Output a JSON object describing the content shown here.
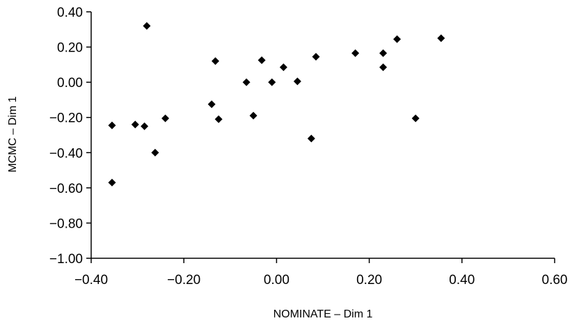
{
  "chart_data": {
    "type": "scatter",
    "xlabel": "NOMINATE – Dim 1",
    "ylabel": "MCMC – Dim 1",
    "xlim": [
      -0.4,
      0.6
    ],
    "ylim": [
      -1.0,
      0.4
    ],
    "x_ticks": [
      "−0.40",
      "−0.20",
      "0.00",
      "0.20",
      "0.40",
      "0.60"
    ],
    "y_ticks": [
      "0.40",
      "0.20",
      "0.00",
      "−0.20",
      "−0.40",
      "−0.60",
      "−0.80",
      "−1.00"
    ],
    "x_tick_values": [
      -0.4,
      -0.2,
      0.0,
      0.2,
      0.4,
      0.6
    ],
    "y_tick_values": [
      0.4,
      0.2,
      0.0,
      -0.2,
      -0.4,
      -0.6,
      -0.8,
      -1.0
    ],
    "grid": false,
    "marker": "diamond",
    "marker_color": "#000000",
    "points": [
      {
        "x": -0.355,
        "y": -0.57
      },
      {
        "x": -0.355,
        "y": -0.245
      },
      {
        "x": -0.305,
        "y": -0.24
      },
      {
        "x": -0.285,
        "y": -0.25
      },
      {
        "x": -0.28,
        "y": 0.32
      },
      {
        "x": -0.262,
        "y": -0.4
      },
      {
        "x": -0.24,
        "y": -0.205
      },
      {
        "x": -0.14,
        "y": -0.125
      },
      {
        "x": -0.132,
        "y": 0.12
      },
      {
        "x": -0.125,
        "y": -0.21
      },
      {
        "x": -0.065,
        "y": 0.0
      },
      {
        "x": -0.05,
        "y": -0.19
      },
      {
        "x": -0.032,
        "y": 0.125
      },
      {
        "x": -0.01,
        "y": 0.0
      },
      {
        "x": 0.015,
        "y": 0.085
      },
      {
        "x": 0.045,
        "y": 0.005
      },
      {
        "x": 0.075,
        "y": -0.32
      },
      {
        "x": 0.085,
        "y": 0.145
      },
      {
        "x": 0.17,
        "y": 0.165
      },
      {
        "x": 0.23,
        "y": 0.165
      },
      {
        "x": 0.23,
        "y": 0.085
      },
      {
        "x": 0.26,
        "y": 0.245
      },
      {
        "x": 0.3,
        "y": -0.205
      },
      {
        "x": 0.355,
        "y": 0.25
      }
    ]
  }
}
